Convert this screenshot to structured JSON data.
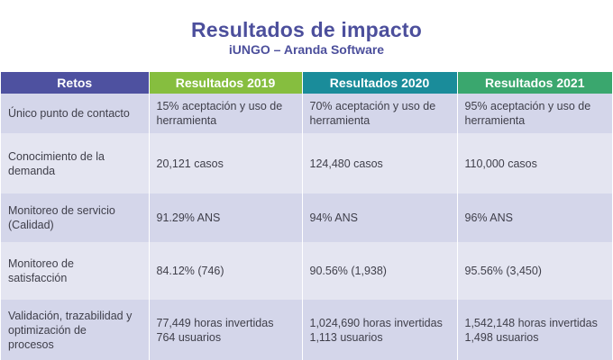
{
  "header": {
    "title": "Resultados de impacto",
    "subtitle": "iUNGO – Aranda Software"
  },
  "colors": {
    "title": "#4c4f9c",
    "retos_header": "#4e51a0",
    "y2019_header": "#86be3f",
    "y2020_header": "#1a8c9a",
    "y2021_header": "#3aa76e",
    "row_dark": "#d4d6ea",
    "row_light": "#e4e5f1"
  },
  "table": {
    "columns": [
      "Retos",
      "Resultados 2019",
      "Resultados 2020",
      "Resultados 2021"
    ],
    "rows": [
      {
        "reto": [
          "Único punto de contacto"
        ],
        "y2019": [
          "15% aceptación y uso de",
          "herramienta"
        ],
        "y2020": [
          "70% aceptación y uso de",
          "herramienta"
        ],
        "y2021": [
          "95% aceptación y uso de",
          "herramienta"
        ]
      },
      {
        "reto": [
          "Conocimiento de la",
          "demanda"
        ],
        "y2019": [
          "20,121 casos"
        ],
        "y2020": [
          "124,480 casos"
        ],
        "y2021": [
          "110,000 casos"
        ]
      },
      {
        "reto": [
          "Monitoreo de servicio",
          "(Calidad)"
        ],
        "y2019": [
          "91.29% ANS"
        ],
        "y2020": [
          "94% ANS"
        ],
        "y2021": [
          "96% ANS"
        ]
      },
      {
        "reto": [
          "Monitoreo de",
          "satisfacción"
        ],
        "y2019": [
          "84.12% (746)"
        ],
        "y2020": [
          "90.56% (1,938)"
        ],
        "y2021": [
          "95.56% (3,450)"
        ]
      },
      {
        "reto": [
          "Validación, trazabilidad y",
          "optimización de",
          "procesos"
        ],
        "y2019": [
          "77,449 horas invertidas",
          "764 usuarios"
        ],
        "y2020": [
          "1,024,690 horas invertidas",
          "1,113 usuarios"
        ],
        "y2021": [
          "1,542,148 horas invertidas",
          "1,498 usuarios"
        ]
      }
    ]
  }
}
